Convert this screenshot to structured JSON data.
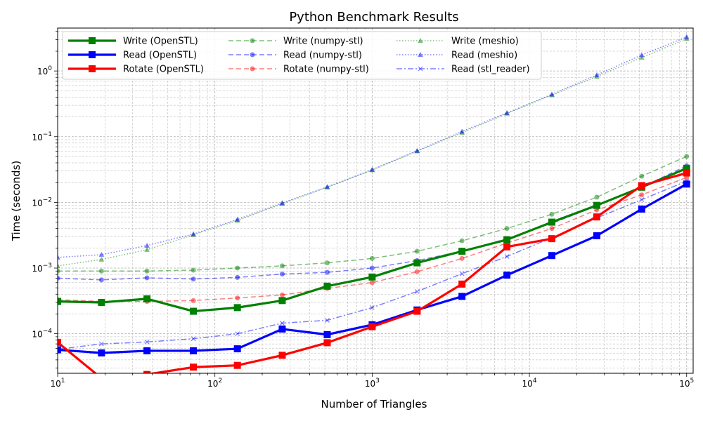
{
  "chart_data": {
    "type": "line",
    "title": "Python Benchmark Results",
    "xlabel": "Number of Triangles",
    "ylabel": "Time (seconds)",
    "xscale": "log",
    "yscale": "log",
    "xlim": [
      10,
      110000
    ],
    "ylim": [
      2.5e-05,
      4.5
    ],
    "grid": true,
    "legend_position": "top-left",
    "legend_columns": 3,
    "x_ticks": [
      {
        "value": 10,
        "base": "10",
        "exp": "1"
      },
      {
        "value": 100,
        "base": "10",
        "exp": "2"
      },
      {
        "value": 1000,
        "base": "10",
        "exp": "3"
      },
      {
        "value": 10000,
        "base": "10",
        "exp": "4"
      },
      {
        "value": 100000,
        "base": "10",
        "exp": "5"
      }
    ],
    "y_ticks": [
      {
        "value": 0.0001,
        "base": "10",
        "exp": "−4"
      },
      {
        "value": 0.001,
        "base": "10",
        "exp": "−3"
      },
      {
        "value": 0.01,
        "base": "10",
        "exp": "−2"
      },
      {
        "value": 0.1,
        "base": "10",
        "exp": "−1"
      },
      {
        "value": 1,
        "base": "10",
        "exp": "0"
      }
    ],
    "x": [
      10,
      19,
      37,
      73,
      139,
      268,
      518,
      1000,
      1931,
      3727,
      7197,
      13894,
      26827,
      51795,
      100000
    ],
    "series": [
      {
        "name": "Write (OpenSTL)",
        "color": "#008000",
        "opacity": 1,
        "style": "solid",
        "marker": "square",
        "width": "thick",
        "values": [
          0.00031,
          0.0003,
          0.00034,
          0.00022,
          0.00025,
          0.00032,
          0.00053,
          0.00073,
          0.0012,
          0.0018,
          0.0027,
          0.005,
          0.009,
          0.017,
          0.033
        ]
      },
      {
        "name": "Read (OpenSTL)",
        "color": "#0000ff",
        "opacity": 1,
        "style": "solid",
        "marker": "square",
        "width": "thick",
        "values": [
          5.7e-05,
          5.1e-05,
          5.5e-05,
          5.5e-05,
          5.9e-05,
          0.000118,
          9.7e-05,
          0.000137,
          0.00023,
          0.00037,
          0.00078,
          0.00155,
          0.0031,
          0.0079,
          0.019
        ]
      },
      {
        "name": "Rotate (OpenSTL)",
        "color": "#ff0000",
        "opacity": 1,
        "style": "solid",
        "marker": "square",
        "width": "thick",
        "values": [
          7.4e-05,
          2.1e-05,
          2.4e-05,
          3.1e-05,
          3.3e-05,
          4.7e-05,
          7.3e-05,
          0.000128,
          0.00022,
          0.00057,
          0.0021,
          0.0028,
          0.006,
          0.018,
          0.028
        ]
      },
      {
        "name": "Write (numpy-stl)",
        "color": "#008000",
        "opacity": 0.5,
        "style": "dashed",
        "marker": "circle",
        "width": "thin",
        "values": [
          0.0009,
          0.0009,
          0.0009,
          0.00093,
          0.001,
          0.00108,
          0.0012,
          0.0014,
          0.0018,
          0.0026,
          0.004,
          0.0066,
          0.012,
          0.025,
          0.05
        ]
      },
      {
        "name": "Read (numpy-stl)",
        "color": "#0000ff",
        "opacity": 0.5,
        "style": "dashed",
        "marker": "circle",
        "width": "thin",
        "values": [
          0.0007,
          0.00066,
          0.00071,
          0.00068,
          0.00072,
          0.00081,
          0.00086,
          0.001,
          0.0013,
          0.0018,
          0.0028,
          0.0048,
          0.0088,
          0.017,
          0.036
        ]
      },
      {
        "name": "Rotate (numpy-stl)",
        "color": "#ff0000",
        "opacity": 0.5,
        "style": "dashed",
        "marker": "circle",
        "width": "thin",
        "values": [
          0.00033,
          0.00031,
          0.00031,
          0.00032,
          0.00035,
          0.00039,
          0.00049,
          0.0006,
          0.00088,
          0.0014,
          0.0024,
          0.004,
          0.0077,
          0.013,
          0.024
        ]
      },
      {
        "name": "Write (meshio)",
        "color": "#008000",
        "opacity": 0.5,
        "style": "dotted",
        "marker": "triangle",
        "width": "thin",
        "values": [
          0.00108,
          0.00135,
          0.0019,
          0.0032,
          0.0053,
          0.0095,
          0.017,
          0.031,
          0.06,
          0.115,
          0.225,
          0.43,
          0.82,
          1.6,
          3.1
        ]
      },
      {
        "name": "Read (meshio)",
        "color": "#0000ff",
        "opacity": 0.5,
        "style": "dotted",
        "marker": "triangle",
        "width": "thin",
        "values": [
          0.00145,
          0.0016,
          0.0022,
          0.0033,
          0.0055,
          0.0098,
          0.0172,
          0.0315,
          0.061,
          0.12,
          0.23,
          0.44,
          0.87,
          1.75,
          3.3
        ]
      },
      {
        "name": "Read (stl_reader)",
        "color": "#0000ff",
        "opacity": 0.5,
        "style": "dashdot",
        "marker": "x",
        "width": "thin",
        "values": [
          5.8e-05,
          7e-05,
          7.5e-05,
          8.4e-05,
          0.0001,
          0.000145,
          0.00016,
          0.00025,
          0.00044,
          0.00082,
          0.0015,
          0.0029,
          0.0058,
          0.011,
          0.021
        ]
      }
    ]
  }
}
